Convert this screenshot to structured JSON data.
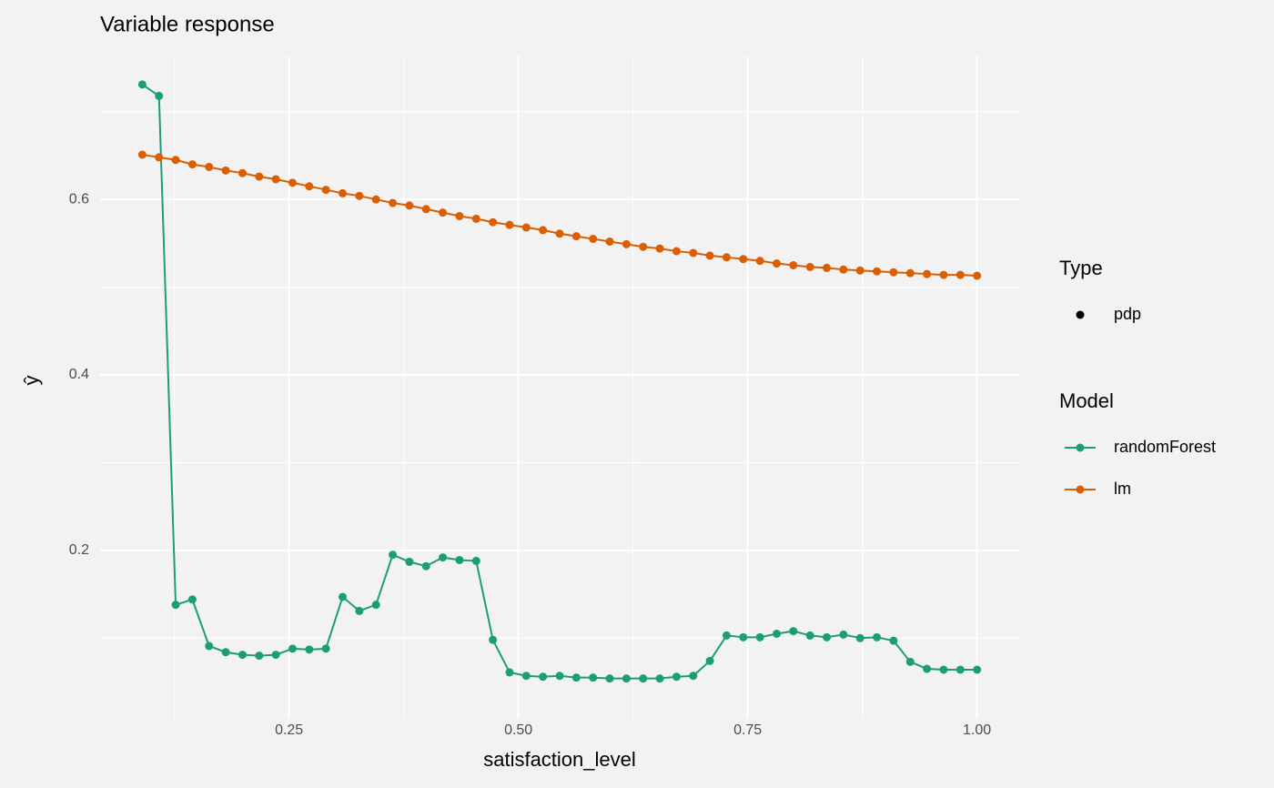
{
  "chart_data": {
    "type": "line",
    "title": "Variable response",
    "x_label": "satisfaction_level",
    "y_label": "ŷ",
    "x": [
      0.09,
      0.1082,
      0.1264,
      0.1446,
      0.1628,
      0.181,
      0.1992,
      0.2174,
      0.2356,
      0.2538,
      0.272,
      0.2902,
      0.3084,
      0.3266,
      0.3448,
      0.363,
      0.3812,
      0.3994,
      0.4176,
      0.4358,
      0.454,
      0.4722,
      0.4904,
      0.5086,
      0.5268,
      0.545,
      0.5632,
      0.5814,
      0.5996,
      0.6178,
      0.636,
      0.6542,
      0.6724,
      0.6906,
      0.7088,
      0.727,
      0.7452,
      0.7634,
      0.7816,
      0.7998,
      0.818,
      0.8362,
      0.8544,
      0.8726,
      0.8908,
      0.909,
      0.9272,
      0.9454,
      0.9636,
      0.9818,
      1.0
    ],
    "series": [
      {
        "name": "randomForest",
        "color": "#1b9e77",
        "values": [
          0.731,
          0.718,
          0.138,
          0.144,
          0.091,
          0.084,
          0.081,
          0.08,
          0.081,
          0.088,
          0.087,
          0.088,
          0.147,
          0.131,
          0.138,
          0.195,
          0.187,
          0.182,
          0.192,
          0.189,
          0.188,
          0.098,
          0.061,
          0.057,
          0.056,
          0.057,
          0.055,
          0.055,
          0.054,
          0.054,
          0.054,
          0.054,
          0.056,
          0.057,
          0.074,
          0.103,
          0.101,
          0.101,
          0.105,
          0.108,
          0.103,
          0.101,
          0.104,
          0.1,
          0.101,
          0.097,
          0.073,
          0.065,
          0.064,
          0.064,
          0.064
        ]
      },
      {
        "name": "lm",
        "color": "#d95f02",
        "values": [
          0.651,
          0.648,
          0.645,
          0.64,
          0.637,
          0.633,
          0.63,
          0.626,
          0.623,
          0.619,
          0.615,
          0.611,
          0.607,
          0.604,
          0.6,
          0.596,
          0.593,
          0.589,
          0.585,
          0.581,
          0.578,
          0.574,
          0.571,
          0.568,
          0.565,
          0.561,
          0.558,
          0.555,
          0.552,
          0.549,
          0.546,
          0.544,
          0.541,
          0.539,
          0.536,
          0.534,
          0.532,
          0.53,
          0.527,
          0.525,
          0.523,
          0.522,
          0.52,
          0.519,
          0.518,
          0.517,
          0.516,
          0.515,
          0.514,
          0.514,
          0.513
        ]
      }
    ],
    "xlim": [
      0.044,
      1.046
    ],
    "ylim": [
      0.008,
      0.763
    ],
    "xticks": [
      {
        "value": 0.25,
        "label": "0.25"
      },
      {
        "value": 0.5,
        "label": "0.50"
      },
      {
        "value": 0.75,
        "label": "0.75"
      },
      {
        "value": 1,
        "label": "1.00"
      }
    ],
    "yticks": [
      0.2,
      0.4,
      0.6
    ],
    "grid": true,
    "shape_legend_title": "Type",
    "shape_legend": [
      "pdp"
    ],
    "shape_legend_color": "#000000",
    "color_legend_title": "Model"
  }
}
